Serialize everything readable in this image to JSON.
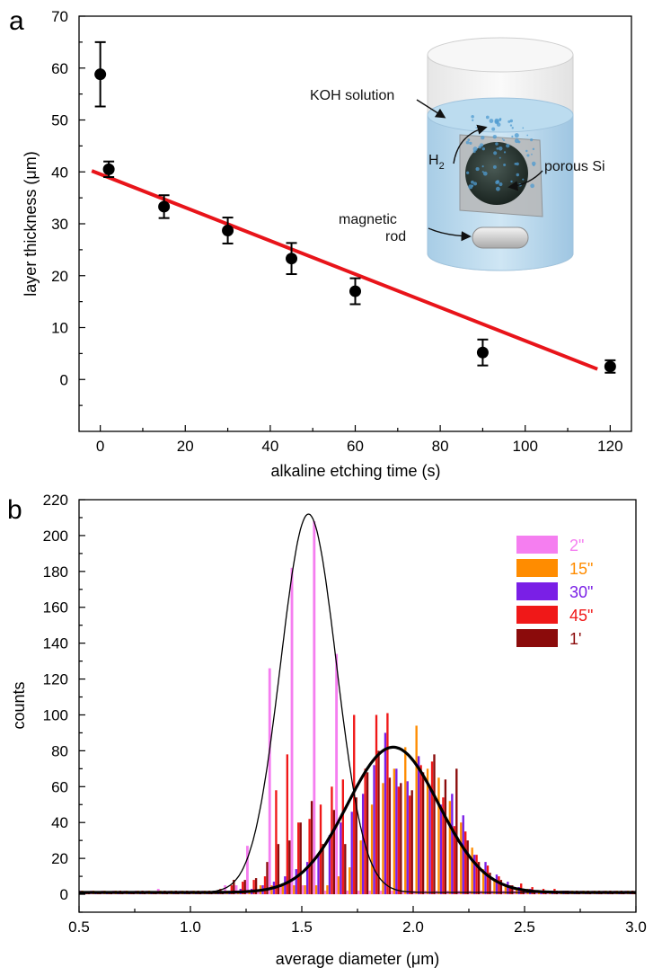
{
  "chart_data": [
    {
      "panel": "a",
      "type": "scatter",
      "xlabel": "alkaline etching time (s)",
      "ylabel": "layer thickness (μm)",
      "xlim": [
        -5,
        125
      ],
      "ylim": [
        -10,
        70
      ],
      "xticks": [
        0,
        20,
        40,
        60,
        80,
        100,
        120
      ],
      "yticks": [
        0,
        10,
        20,
        30,
        40,
        50,
        60,
        70
      ],
      "points": [
        {
          "x": 0,
          "y": 58.8,
          "err": 6.2
        },
        {
          "x": 2,
          "y": 40.5,
          "err": 1.5
        },
        {
          "x": 15,
          "y": 33.3,
          "err": 2.2
        },
        {
          "x": 30,
          "y": 28.7,
          "err": 2.5
        },
        {
          "x": 45,
          "y": 23.3,
          "err": 3.0
        },
        {
          "x": 60,
          "y": 17.0,
          "err": 2.5
        },
        {
          "x": 90,
          "y": 5.2,
          "err": 2.5
        },
        {
          "x": 120,
          "y": 2.5,
          "err": 1.2
        }
      ],
      "fit_line": {
        "x": [
          -2,
          117
        ],
        "y": [
          40.2,
          2.0
        ],
        "color": "#e8141a"
      },
      "inset_labels": {
        "koh": "KOH solution",
        "h2": "H",
        "h2_sub": "2",
        "porous": "porous Si",
        "magnetic": "magnetic",
        "rod": "rod"
      }
    },
    {
      "panel": "b",
      "type": "bar",
      "xlabel": "average diameter (μm)",
      "ylabel": "counts",
      "xlim": [
        0.5,
        3.0
      ],
      "ylim": [
        -10,
        220
      ],
      "xticks": [
        0.5,
        1.0,
        1.5,
        2.0,
        2.5,
        3.0
      ],
      "yticks": [
        0,
        20,
        40,
        60,
        80,
        100,
        120,
        140,
        160,
        180,
        200,
        220
      ],
      "bin_width": 0.05,
      "bin_centers": [
        0.525,
        0.575,
        0.625,
        0.675,
        0.725,
        0.775,
        0.825,
        0.875,
        0.925,
        0.975,
        1.025,
        1.075,
        1.125,
        1.175,
        1.225,
        1.275,
        1.325,
        1.375,
        1.425,
        1.475,
        1.525,
        1.575,
        1.625,
        1.675,
        1.725,
        1.775,
        1.825,
        1.875,
        1.925,
        1.975,
        2.025,
        2.075,
        2.125,
        2.175,
        2.225,
        2.275,
        2.325,
        2.375,
        2.425,
        2.475,
        2.525,
        2.575,
        2.625,
        2.675,
        2.725,
        2.775,
        2.825,
        2.875,
        2.925,
        2.975
      ],
      "series": [
        {
          "name": "2\"",
          "color": "#f57ef0",
          "values": [
            2,
            2,
            2,
            2,
            2,
            2,
            2,
            3,
            2,
            2,
            2,
            2,
            2,
            5,
            5,
            27,
            2,
            126,
            5,
            182,
            5,
            208,
            2,
            134,
            2,
            2,
            2,
            2,
            2,
            2,
            2,
            2,
            2,
            2,
            2,
            2,
            2,
            2,
            2,
            2,
            2,
            2,
            2,
            2,
            2,
            2,
            2,
            2,
            2,
            2
          ]
        },
        {
          "name": "15\"",
          "color": "#ff8c00",
          "values": [
            2,
            2,
            2,
            2,
            2,
            2,
            2,
            2,
            2,
            2,
            2,
            2,
            2,
            2,
            2,
            2,
            5,
            5,
            5,
            5,
            5,
            5,
            5,
            10,
            15,
            30,
            50,
            62,
            70,
            82,
            94,
            70,
            65,
            52,
            40,
            26,
            14,
            8,
            5,
            3,
            3,
            2,
            2,
            2,
            2,
            2,
            2,
            2,
            2,
            2
          ]
        },
        {
          "name": "30\"",
          "color": "#7a1fe6",
          "values": [
            1,
            1,
            1,
            1,
            1,
            1,
            1,
            1,
            1,
            1,
            1,
            1,
            1,
            2,
            3,
            3,
            5,
            7,
            10,
            14,
            18,
            22,
            33,
            40,
            46,
            56,
            72,
            90,
            70,
            63,
            77,
            60,
            50,
            56,
            44,
            22,
            18,
            11,
            7,
            4,
            3,
            2,
            2,
            2,
            1,
            1,
            1,
            1,
            1,
            1
          ]
        },
        {
          "name": "45\"",
          "color": "#f01818",
          "values": [
            1,
            1,
            1,
            2,
            1,
            2,
            1,
            2,
            2,
            2,
            2,
            2,
            3,
            5,
            7,
            8,
            10,
            58,
            78,
            40,
            42,
            50,
            60,
            64,
            100,
            70,
            100,
            101,
            60,
            55,
            72,
            74,
            54,
            38,
            35,
            22,
            16,
            10,
            5,
            6,
            4,
            3,
            3,
            2,
            2,
            2,
            2,
            2,
            2,
            2
          ]
        },
        {
          "name": "1'",
          "color": "#8b0b0b",
          "values": [
            1,
            1,
            1,
            1,
            1,
            1,
            1,
            1,
            1,
            1,
            1,
            1,
            1,
            8,
            8,
            9,
            18,
            28,
            30,
            40,
            52,
            28,
            47,
            28,
            54,
            68,
            80,
            65,
            62,
            58,
            68,
            78,
            64,
            70,
            30,
            18,
            12,
            8,
            5,
            3,
            2,
            2,
            2,
            2,
            1,
            1,
            1,
            1,
            1,
            1
          ]
        }
      ],
      "fits": [
        {
          "type": "gaussian",
          "center": 1.53,
          "sigma": 0.125,
          "amplitude": 211,
          "baseline": 1,
          "line": "thin"
        },
        {
          "type": "gaussian",
          "center": 1.91,
          "sigma": 0.205,
          "amplitude": 81,
          "baseline": 1,
          "line": "thick"
        }
      ]
    }
  ]
}
